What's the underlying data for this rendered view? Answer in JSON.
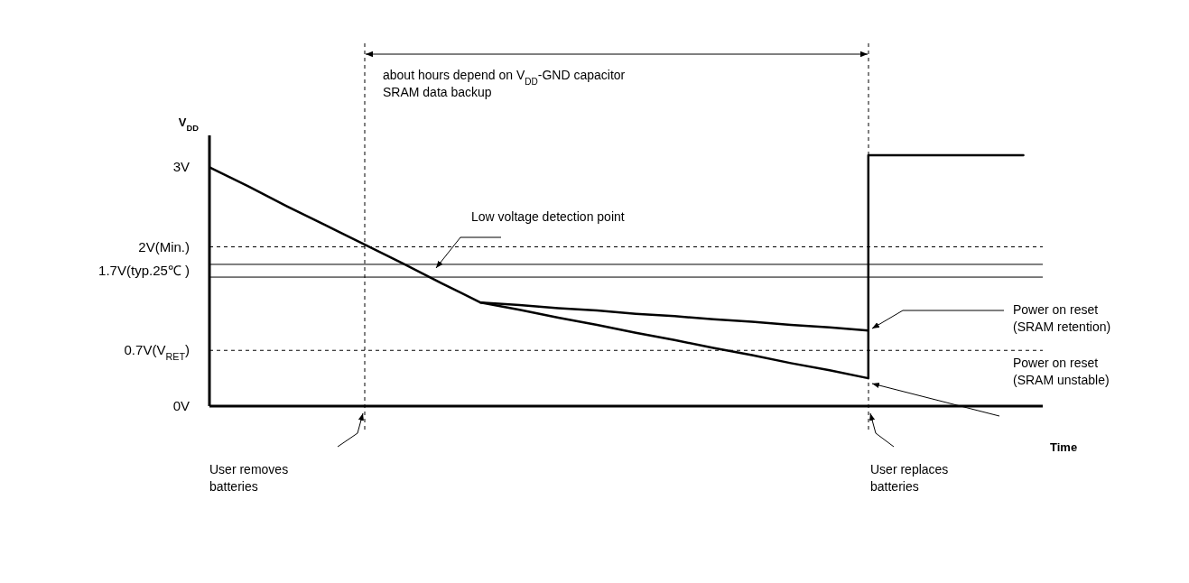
{
  "chart_data": {
    "type": "line",
    "xlabel": "Time",
    "ylabel": "V$_{DD}$",
    "ylim": [
      0,
      3.4
    ],
    "categories": [
      null,
      null,
      null,
      null,
      null,
      null,
      null,
      null,
      null,
      null,
      null,
      null,
      null,
      null,
      null,
      null,
      null,
      null,
      null,
      null,
      null,
      null
    ],
    "yticks": [
      {
        "value": 0,
        "label": "0V"
      },
      {
        "value": 0.7,
        "label": "0.7V(V$_{RET}$)"
      },
      {
        "value": 1.7,
        "label": "1.7V(typ.25℃ )"
      },
      {
        "value": 2,
        "label": "2V(Min.)"
      },
      {
        "value": 3,
        "label": "3V"
      }
    ],
    "tick_labels": "y",
    "grid": false,
    "legend": false,
    "marker": "none",
    "line_style": "solid",
    "series": [
      {
        "color": "#000000",
        "values": [
          3,
          2.76,
          2.51,
          2.27,
          2.03,
          1.79,
          1.54,
          1.3,
          1.27,
          1.23,
          1.2,
          1.16,
          1.13,
          1.09,
          1.06,
          1.02,
          0.99,
          0.95,
          null,
          null,
          null,
          null
        ]
      },
      {
        "color": "#000000",
        "values": [
          null,
          null,
          null,
          null,
          null,
          null,
          null,
          1.3,
          1.21,
          1.11,
          1.02,
          0.92,
          0.83,
          0.73,
          0.64,
          0.54,
          0.45,
          0.35,
          null,
          null,
          null,
          null
        ]
      },
      {
        "type": "step",
        "color": "#000000",
        "values": [
          null,
          null,
          null,
          null,
          null,
          null,
          null,
          null,
          null,
          null,
          null,
          null,
          null,
          null,
          null,
          null,
          null,
          0.35,
          3.15,
          3.15,
          3.15,
          3.15
        ]
      }
    ],
    "ref_lines": [
      {
        "axis": "y",
        "value": 2,
        "line_style": "dashed",
        "color": "#000000"
      },
      {
        "axis": "y",
        "value": 0.7,
        "line_style": "dashed",
        "color": "#000000"
      },
      {
        "axis": "y",
        "value": 1.78,
        "line_style": "solid",
        "color": "#000000"
      },
      {
        "axis": "y",
        "value": 1.62,
        "line_style": "solid",
        "color": "#000000"
      }
    ],
    "annotations": [
      "about hours depend on V$_{DD}$-GND capacitor\nSRAM data backup",
      "Low  voltage detection point",
      "Power on reset\n(SRAM retention)",
      "Power on reset\n(SRAM unstable)",
      "User removes\nbatteries",
      "User replaces\nbatteries"
    ]
  }
}
